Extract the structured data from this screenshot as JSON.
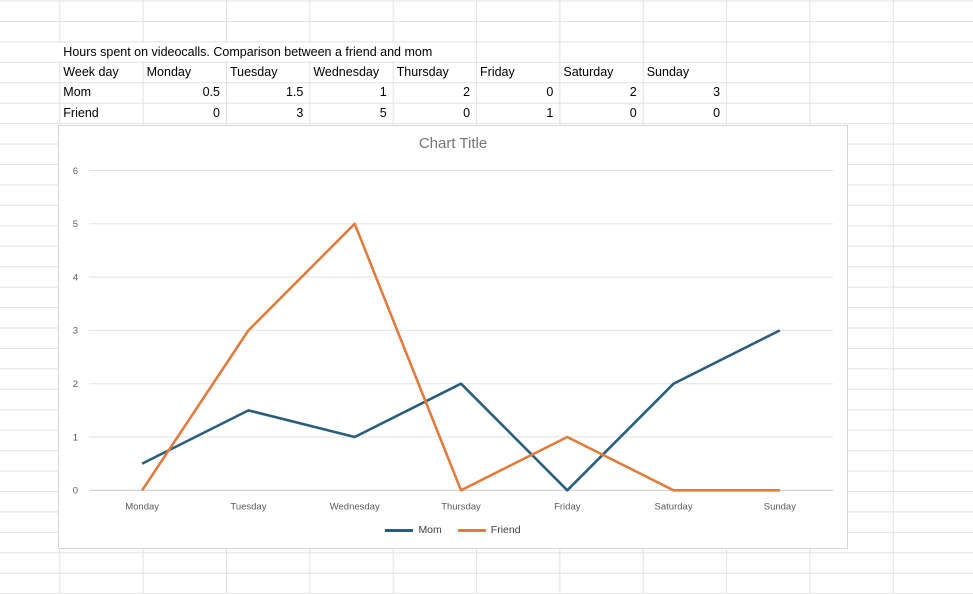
{
  "table": {
    "title": "Hours spent on videocalls. Comparison between a friend and mom",
    "corner_header": "Week day",
    "days": [
      "Monday",
      "Tuesday",
      "Wednesday",
      "Thursday",
      "Friday",
      "Saturday",
      "Sunday"
    ],
    "rows": [
      {
        "name": "Mom",
        "values": [
          "0.5",
          "1.5",
          "1",
          "2",
          "0",
          "2",
          "3"
        ]
      },
      {
        "name": "Friend",
        "values": [
          "0",
          "3",
          "5",
          "0",
          "1",
          "0",
          "0"
        ]
      }
    ]
  },
  "chart_data": {
    "type": "line",
    "title": "Chart Title",
    "categories": [
      "Monday",
      "Tuesday",
      "Wednesday",
      "Thursday",
      "Friday",
      "Saturday",
      "Sunday"
    ],
    "series": [
      {
        "name": "Mom",
        "color": "#2B5D7C",
        "values": [
          0.5,
          1.5,
          1,
          2,
          0,
          2,
          3
        ]
      },
      {
        "name": "Friend",
        "color": "#E07C3E",
        "values": [
          0,
          3,
          5,
          0,
          1,
          0,
          0
        ]
      }
    ],
    "ylim": [
      0,
      6
    ],
    "ytick_step": 1,
    "yticks": [
      0,
      1,
      2,
      3,
      4,
      5,
      6
    ],
    "grid": true,
    "legend_position": "bottom",
    "style": {
      "title_color": "#757575",
      "tick_color": "#595959",
      "gridline_color": "#E2E2E2",
      "axis_line_color": "#C9C9C9",
      "legend_text_color": "#404040"
    }
  }
}
